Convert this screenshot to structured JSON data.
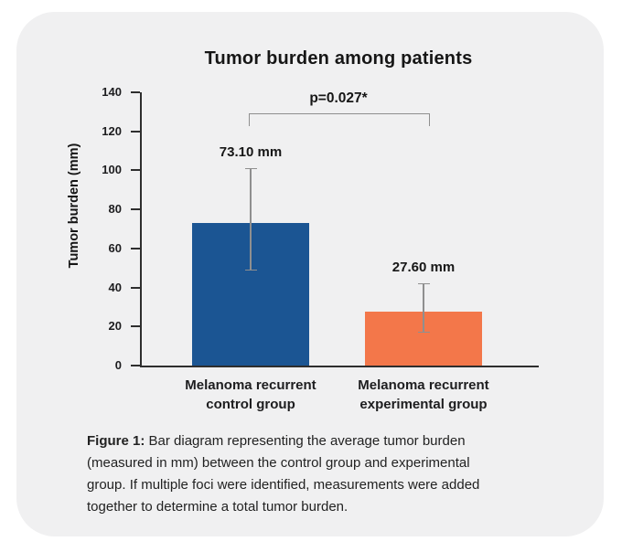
{
  "chart_data": {
    "type": "bar",
    "title": "Tumor burden among patients",
    "xlabel": "",
    "ylabel": "Tumor burden (mm)",
    "ylim": [
      0,
      140
    ],
    "yticks": [
      0,
      20,
      40,
      60,
      80,
      100,
      120,
      140
    ],
    "grid": false,
    "legend": "none",
    "categories": [
      [
        "Melanoma recurrent",
        "control group"
      ],
      [
        "Melanoma recurrent",
        "experimental group"
      ]
    ],
    "values": [
      73.1,
      27.6
    ],
    "value_labels": [
      "73.10 mm",
      "27.60 mm"
    ],
    "bar_colors": [
      "#1b5593",
      "#f3774a"
    ],
    "error_bars": [
      {
        "low": 49,
        "high": 101
      },
      {
        "low": 17,
        "high": 42
      }
    ],
    "significance": {
      "label": "p=0.027*",
      "pair": [
        0,
        1
      ]
    }
  },
  "caption": {
    "prefix": "Figure 1:",
    "lines": [
      " Bar diagram representing the average tumor burden",
      "(measured in mm) between the control group and experimental",
      "group. If multiple foci were identified, measurements were added",
      "together to determine a total tumor burden."
    ]
  },
  "colors": {
    "page_bg": "#ffffff",
    "card_bg": "#f0f0f1",
    "text": "#1d1d1f",
    "axis": "#2e2e2e",
    "error_line": "#8f8f8f",
    "bar_blue": "#1b5593",
    "bar_orange": "#f3774a"
  }
}
